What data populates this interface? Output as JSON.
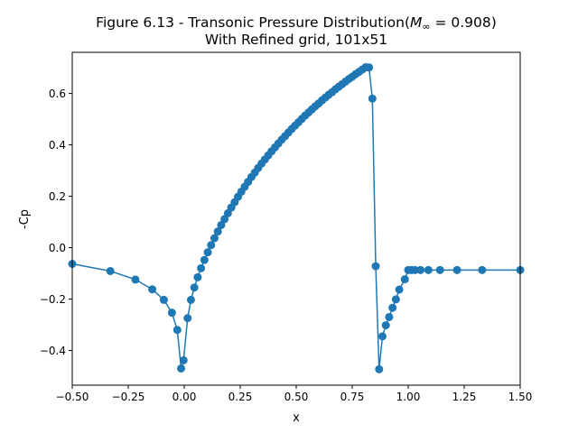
{
  "chart_data": {
    "type": "line",
    "title_line1_prefix": "Figure 6.13 - Transonic Pressure Distribution(",
    "title_line1_math_M": "M",
    "title_line1_math_sub": "∞",
    "title_line1_suffix": " = 0.908)",
    "title_line2": "With Refined grid, 101x51",
    "xlabel": "x",
    "ylabel": "-Cp",
    "xlim": [
      -0.5,
      1.5
    ],
    "ylim": [
      -0.535,
      0.76
    ],
    "xticks": [
      -0.5,
      -0.25,
      0.0,
      0.25,
      0.5,
      0.75,
      1.0,
      1.25,
      1.5
    ],
    "xtick_labels": [
      "−0.50",
      "−0.25",
      "0.00",
      "0.25",
      "0.50",
      "0.75",
      "1.00",
      "1.25",
      "1.50"
    ],
    "yticks": [
      -0.4,
      -0.2,
      0.0,
      0.2,
      0.4,
      0.6
    ],
    "ytick_labels": [
      "−0.4",
      "−0.2",
      "0.0",
      "0.2",
      "0.4",
      "0.6"
    ],
    "grid": false,
    "series": [
      {
        "color": "#1f77b4",
        "marker": "circle",
        "x": [
          -0.5,
          -0.33,
          -0.218,
          -0.143,
          -0.091,
          -0.055,
          -0.031,
          -0.014,
          -0.003,
          0.015,
          0.03,
          0.045,
          0.06,
          0.075,
          0.09,
          0.105,
          0.12,
          0.135,
          0.15,
          0.165,
          0.18,
          0.195,
          0.21,
          0.225,
          0.24,
          0.255,
          0.27,
          0.285,
          0.3,
          0.315,
          0.33,
          0.345,
          0.36,
          0.375,
          0.39,
          0.405,
          0.42,
          0.435,
          0.45,
          0.465,
          0.48,
          0.495,
          0.51,
          0.525,
          0.54,
          0.555,
          0.57,
          0.585,
          0.6,
          0.615,
          0.63,
          0.645,
          0.66,
          0.675,
          0.69,
          0.705,
          0.72,
          0.735,
          0.75,
          0.765,
          0.78,
          0.795,
          0.81,
          0.825,
          0.84,
          0.855,
          0.87,
          0.885,
          0.9,
          0.915,
          0.93,
          0.945,
          0.96,
          0.985,
          1.0,
          1.015,
          1.03,
          1.055,
          1.09,
          1.142,
          1.218,
          1.33,
          1.5
        ],
        "y": [
          -0.063,
          -0.091,
          -0.124,
          -0.162,
          -0.203,
          -0.253,
          -0.32,
          -0.47,
          -0.438,
          -0.274,
          -0.203,
          -0.155,
          -0.115,
          -0.08,
          -0.048,
          -0.018,
          0.01,
          0.037,
          0.063,
          0.088,
          0.111,
          0.134,
          0.156,
          0.177,
          0.198,
          0.218,
          0.237,
          0.256,
          0.275,
          0.292,
          0.31,
          0.327,
          0.343,
          0.359,
          0.375,
          0.39,
          0.405,
          0.42,
          0.434,
          0.448,
          0.462,
          0.475,
          0.488,
          0.501,
          0.514,
          0.526,
          0.538,
          0.55,
          0.561,
          0.573,
          0.584,
          0.595,
          0.605,
          0.616,
          0.626,
          0.636,
          0.646,
          0.656,
          0.665,
          0.675,
          0.684,
          0.693,
          0.702,
          0.701,
          0.58,
          -0.072,
          -0.473,
          -0.345,
          -0.302,
          -0.27,
          -0.234,
          -0.201,
          -0.163,
          -0.123,
          -0.087,
          -0.087,
          -0.087,
          -0.087,
          -0.087,
          -0.087,
          -0.087,
          -0.087,
          -0.087
        ]
      }
    ]
  }
}
